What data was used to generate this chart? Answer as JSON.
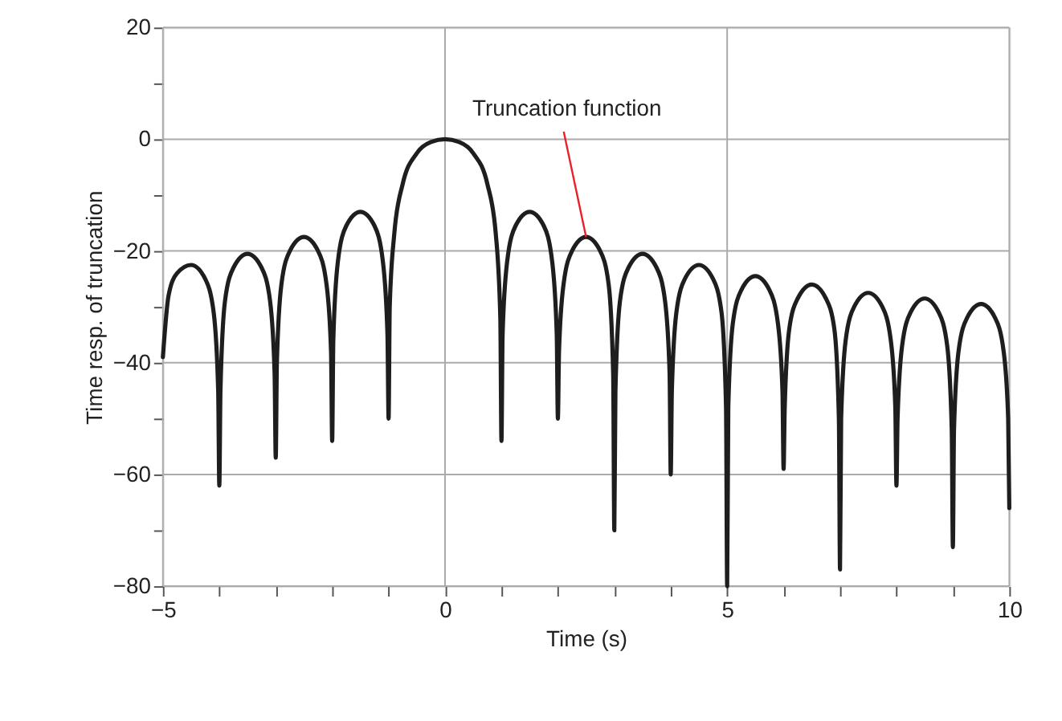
{
  "chart_data": {
    "type": "line",
    "xlabel": "Time (s)",
    "ylabel": "Time resp. of truncation",
    "xlim": [
      -5,
      10
    ],
    "ylim": [
      -80,
      20
    ],
    "xticks": [
      -5,
      {
        "value": -4,
        "label": null
      },
      {
        "value": -3,
        "label": null
      },
      {
        "value": -2,
        "label": null
      },
      {
        "value": -1,
        "label": null
      },
      0,
      {
        "value": 1,
        "label": null
      },
      {
        "value": 2,
        "label": null
      },
      {
        "value": 3,
        "label": null
      },
      {
        "value": 4,
        "label": null
      },
      5,
      {
        "value": 6,
        "label": null
      },
      {
        "value": 7,
        "label": null
      },
      {
        "value": 8,
        "label": null
      },
      {
        "value": 9,
        "label": null
      },
      10
    ],
    "yticks": [
      -80,
      {
        "value": -70,
        "label": null
      },
      -60,
      {
        "value": -50,
        "label": null
      },
      -40,
      {
        "value": -30,
        "label": null
      },
      -20,
      {
        "value": -10,
        "label": null
      },
      0,
      {
        "value": 10,
        "label": null
      },
      20
    ],
    "grid": true,
    "marker": "none",
    "line_style": "solid",
    "annotations": [
      {
        "text": "Truncation function",
        "x": 2.5,
        "y": -17.5
      }
    ],
    "x": [
      -5,
      -4.9,
      -4.75,
      -4.5,
      -4.25,
      -4.1,
      -4.02,
      -4,
      -3.98,
      -3.9,
      -3.75,
      -3.5,
      -3.25,
      -3.1,
      -3.02,
      -3,
      -2.98,
      -2.9,
      -2.75,
      -2.5,
      -2.25,
      -2.1,
      -2.02,
      -2,
      -1.98,
      -1.9,
      -1.75,
      -1.5,
      -1.25,
      -1.1,
      -1.02,
      -1,
      -0.98,
      -0.9,
      -0.75,
      -0.5,
      -0.25,
      0,
      0.25,
      0.5,
      0.75,
      0.9,
      0.98,
      1,
      1.02,
      1.1,
      1.25,
      1.5,
      1.75,
      1.9,
      1.98,
      2,
      2.02,
      2.1,
      2.25,
      2.5,
      2.75,
      2.9,
      2.98,
      3,
      3.02,
      3.1,
      3.25,
      3.5,
      3.75,
      3.9,
      3.98,
      4,
      4.02,
      4.1,
      4.25,
      4.5,
      4.75,
      4.9,
      4.98,
      5,
      5.02,
      5.1,
      5.25,
      5.5,
      5.75,
      5.9,
      5.98,
      6,
      6.02,
      6.1,
      6.25,
      6.5,
      6.75,
      6.9,
      6.98,
      7,
      7.02,
      7.1,
      7.25,
      7.5,
      7.75,
      7.9,
      7.98,
      8,
      8.02,
      8.1,
      8.25,
      8.5,
      8.75,
      8.9,
      8.98,
      9,
      9.02,
      9.1,
      9.25,
      9.5,
      9.75,
      9.9,
      9.98,
      10
    ],
    "series": [
      {
        "color": "#1e1e1e",
        "values": [
          -39,
          -28,
          -24,
          -22.5,
          -25,
          -31,
          -45,
          -62,
          -45,
          -29,
          -23,
          -20.5,
          -23,
          -29,
          -42,
          -57,
          -40,
          -26,
          -20,
          -17.5,
          -20,
          -26,
          -38,
          -54,
          -36,
          -22,
          -15.5,
          -13,
          -15.5,
          -22,
          -35,
          -50,
          -30,
          -17,
          -8,
          -2.5,
          -0.5,
          0,
          -0.5,
          -2.5,
          -8,
          -17,
          -32,
          -54,
          -35,
          -22,
          -15.5,
          -13,
          -15.5,
          -22,
          -35,
          -50,
          -38,
          -26,
          -20,
          -17.5,
          -20,
          -26,
          -42,
          -70,
          -45,
          -29,
          -23,
          -20.5,
          -23,
          -29,
          -42,
          -60,
          -45,
          -31,
          -25,
          -22.5,
          -25,
          -31,
          -48,
          -80,
          -48,
          -33,
          -27,
          -24.5,
          -27,
          -33,
          -45,
          -59,
          -48,
          -34,
          -28.5,
          -26,
          -28.5,
          -34,
          -50,
          -77,
          -50,
          -36,
          -30,
          -27.5,
          -30,
          -36,
          -48,
          -62,
          -50,
          -37,
          -31,
          -28.5,
          -31,
          -37,
          -52,
          -73,
          -52,
          -38,
          -32,
          -29.5,
          -32,
          -38,
          -50,
          -66
        ]
      }
    ]
  }
}
